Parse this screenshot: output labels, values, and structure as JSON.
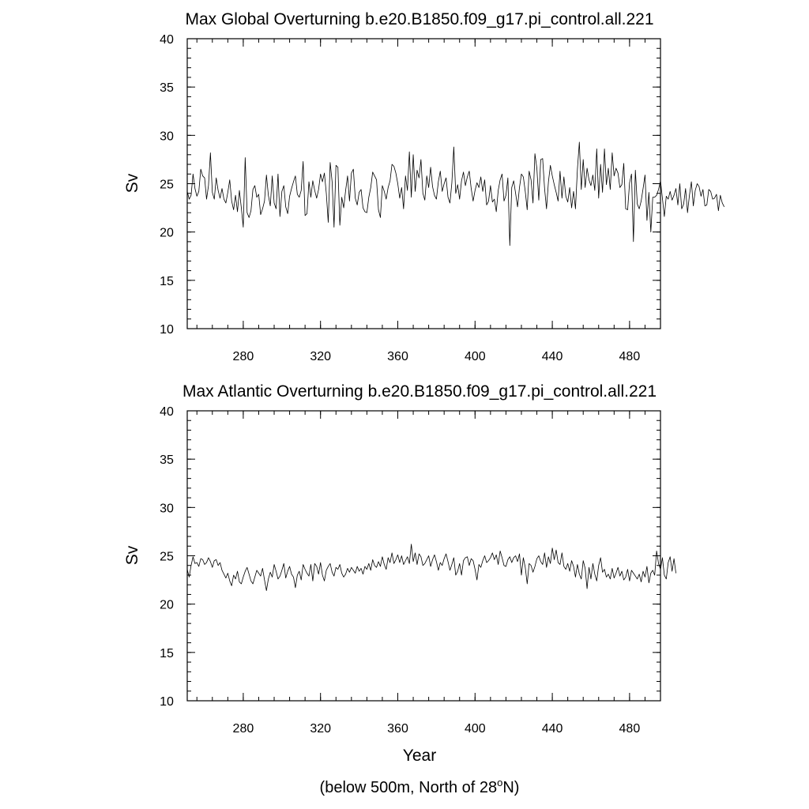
{
  "chart_data": [
    {
      "type": "line",
      "title": "Max Global Overturning b.e20.B1850.f09_g17.pi_control.all.221",
      "xlabel": "",
      "ylabel": "Sv",
      "xlim": [
        251,
        496
      ],
      "ylim": [
        10,
        40
      ],
      "xticks": [
        280,
        320,
        360,
        400,
        440,
        480
      ],
      "yticks": [
        10,
        15,
        20,
        25,
        30,
        35,
        40
      ],
      "xtick_labels": [
        "280",
        "320",
        "360",
        "400",
        "440",
        "480"
      ],
      "ytick_labels": [
        "10",
        "15",
        "20",
        "25",
        "30",
        "35",
        "40"
      ],
      "grid": false,
      "series": [
        {
          "x_start": 251,
          "x_step": 1,
          "values": [
            24.2,
            23.4,
            23.8,
            26.0,
            24.5,
            23.7,
            24.2,
            26.5,
            25.8,
            25.6,
            23.4,
            24.8,
            28.2,
            24.1,
            23.4,
            25.6,
            24.3,
            23.5,
            24.5,
            23.4,
            23.0,
            24.1,
            25.4,
            23.2,
            22.3,
            23.8,
            22.1,
            24.3,
            22.5,
            20.5,
            27.7,
            22.0,
            21.5,
            22.2,
            24.4,
            24.8,
            23.6,
            23.9,
            21.8,
            22.4,
            23.2,
            25.9,
            23.8,
            22.7,
            25.8,
            23.0,
            22.4,
            26.0,
            21.6,
            24.2,
            24.8,
            22.6,
            21.9,
            23.7,
            24.5,
            25.2,
            25.8,
            23.9,
            23.6,
            24.3,
            27.3,
            21.7,
            21.9,
            25.2,
            23.6,
            25.3,
            24.3,
            23.5,
            24.4,
            26.0,
            25.2,
            26.1,
            24.0,
            21.0,
            27.2,
            25.2,
            20.5,
            26.9,
            26.7,
            20.7,
            23.6,
            22.5,
            24.3,
            25.8,
            23.2,
            26.1,
            26.5,
            23.5,
            22.8,
            24.1,
            24.4,
            22.5,
            22.1,
            22.0,
            23.6,
            24.6,
            26.2,
            25.8,
            25.4,
            22.3,
            21.5,
            24.8,
            24.2,
            23.4,
            24.6,
            25.3,
            27.0,
            26.8,
            26.1,
            25.0,
            23.5,
            24.6,
            22.4,
            25.8,
            24.3,
            28.3,
            23.6,
            28.0,
            24.2,
            26.4,
            25.6,
            27.5,
            24.0,
            23.3,
            25.8,
            24.6,
            26.7,
            24.7,
            23.8,
            23.4,
            25.2,
            26.3,
            24.2,
            25.0,
            25.6,
            23.6,
            23.0,
            25.1,
            28.8,
            24.0,
            24.9,
            23.4,
            25.3,
            26.2,
            24.8,
            25.7,
            26.3,
            24.5,
            23.2,
            24.3,
            25.1,
            24.6,
            25.7,
            24.2,
            25.4,
            22.8,
            23.2,
            24.8,
            23.1,
            23.4,
            22.1,
            24.3,
            25.4,
            26.0,
            23.2,
            23.8,
            25.6,
            18.6,
            24.6,
            25.3,
            24.0,
            22.6,
            24.6,
            26.0,
            25.7,
            24.2,
            22.3,
            26.3,
            25.4,
            23.0,
            28.1,
            26.6,
            23.3,
            27.5,
            27.6,
            24.5,
            22.4,
            25.2,
            26.9,
            25.8,
            24.9,
            24.1,
            23.2,
            26.3,
            23.5,
            25.7,
            23.7,
            23.1,
            24.6,
            22.5,
            24.2,
            22.4,
            26.5,
            29.3,
            24.4,
            27.5,
            24.6,
            26.6,
            25.4,
            24.8,
            25.9,
            24.3,
            28.6,
            23.5,
            27.0,
            24.1,
            28.6,
            24.9,
            26.6,
            24.4,
            28.2,
            25.8,
            26.6,
            26.1,
            24.6,
            24.9,
            27.1,
            22.4,
            22.3,
            25.1,
            26.0,
            19.0,
            26.4,
            22.9,
            22.4,
            23.2,
            24.5,
            25.9,
            21.2,
            24.1,
            20.0,
            23.6,
            23.6,
            23.8,
            24.4,
            25.3,
            23.5,
            21.6,
            23.7,
            23.4,
            24.2,
            23.3,
            23.8,
            24.5,
            22.8,
            25.0,
            22.4,
            22.9,
            24.5,
            22.0,
            23.8,
            25.2,
            22.7,
            24.3,
            25.0,
            24.7,
            23.7,
            24.4,
            22.7,
            22.8,
            24.4,
            24.2,
            23.4,
            23.5,
            23.9,
            22.2,
            23.8,
            23.0,
            22.6
          ]
        }
      ]
    },
    {
      "type": "line",
      "title": "Max Atlantic Overturning b.e20.B1850.f09_g17.pi_control.all.221",
      "xlabel": "Year",
      "ylabel": "Sv",
      "xlim": [
        251,
        496
      ],
      "ylim": [
        10,
        40
      ],
      "xticks": [
        280,
        320,
        360,
        400,
        440,
        480
      ],
      "yticks": [
        10,
        15,
        20,
        25,
        30,
        35,
        40
      ],
      "xtick_labels": [
        "280",
        "320",
        "360",
        "400",
        "440",
        "480"
      ],
      "ytick_labels": [
        "10",
        "15",
        "20",
        "25",
        "30",
        "35",
        "40"
      ],
      "grid": false,
      "series": [
        {
          "x_start": 251,
          "x_step": 1,
          "values": [
            23.6,
            22.8,
            24.0,
            24.9,
            24.2,
            24.3,
            23.9,
            24.7,
            24.6,
            24.1,
            24.3,
            24.8,
            24.4,
            23.8,
            24.5,
            24.6,
            24.0,
            24.3,
            23.5,
            23.1,
            22.7,
            23.2,
            22.4,
            21.9,
            23.0,
            22.6,
            23.4,
            22.3,
            22.1,
            22.8,
            23.4,
            23.8,
            23.1,
            22.4,
            22.1,
            22.8,
            23.5,
            23.2,
            22.9,
            23.7,
            22.5,
            21.4,
            22.6,
            23.3,
            22.8,
            24.1,
            23.4,
            22.6,
            22.9,
            23.5,
            24.2,
            22.7,
            23.4,
            23.9,
            23.1,
            22.8,
            21.7,
            23.0,
            23.4,
            22.5,
            24.1,
            23.6,
            23.2,
            22.9,
            24.1,
            22.4,
            24.2,
            23.9,
            23.1,
            24.3,
            23.0,
            22.4,
            23.5,
            23.9,
            24.2,
            23.3,
            22.9,
            23.8,
            23.6,
            24.1,
            23.2,
            22.8,
            23.1,
            23.7,
            23.3,
            23.8,
            23.5,
            23.2,
            23.9,
            23.4,
            23.7,
            23.1,
            23.9,
            23.6,
            24.2,
            23.5,
            24.6,
            24.0,
            23.8,
            24.4,
            23.9,
            24.9,
            24.1,
            23.6,
            24.8,
            24.3,
            25.3,
            24.2,
            24.6,
            25.1,
            24.3,
            25.0,
            24.1,
            24.5,
            24.9,
            24.2,
            26.2,
            24.4,
            25.3,
            24.1,
            25.2,
            24.9,
            24.0,
            24.2,
            24.6,
            25.0,
            23.9,
            24.6,
            25.1,
            24.4,
            23.5,
            24.3,
            24.0,
            24.7,
            25.2,
            24.4,
            23.5,
            24.1,
            24.8,
            23.0,
            23.4,
            24.2,
            23.0,
            24.5,
            24.8,
            24.9,
            24.0,
            24.7,
            24.5,
            23.6,
            22.5,
            24.1,
            23.8,
            24.5,
            25.0,
            24.3,
            24.5,
            24.8,
            25.3,
            24.6,
            25.1,
            24.1,
            25.5,
            24.8,
            24.0,
            23.9,
            24.6,
            24.9,
            24.3,
            24.8,
            25.0,
            24.4,
            25.2,
            23.0,
            24.8,
            23.8,
            22.1,
            24.2,
            24.0,
            23.3,
            23.9,
            24.7,
            25.0,
            24.4,
            24.1,
            25.3,
            23.8,
            24.9,
            24.2,
            25.8,
            24.6,
            25.6,
            24.3,
            24.1,
            25.3,
            23.9,
            23.6,
            24.2,
            23.4,
            24.5,
            23.9,
            22.8,
            24.1,
            23.1,
            22.6,
            24.5,
            23.7,
            21.6,
            23.8,
            22.6,
            24.2,
            23.1,
            22.4,
            24.0,
            24.8,
            23.3,
            23.6,
            22.8,
            23.1,
            22.6,
            23.7,
            22.7,
            23.2,
            23.8,
            22.9,
            23.4,
            22.5,
            22.8,
            23.6,
            22.4,
            23.5,
            23.2,
            22.9,
            22.6,
            23.1,
            22.3,
            23.4,
            22.8,
            23.9,
            22.2,
            23.2,
            23.5,
            23.0,
            25.5,
            24.2,
            23.6,
            24.8,
            23.0,
            22.6,
            24.3,
            24.9,
            23.4,
            24.7,
            23.2
          ]
        }
      ]
    }
  ],
  "caption_main": "(below 500m, North of 28",
  "caption_sup": "o",
  "caption_end": "N)"
}
